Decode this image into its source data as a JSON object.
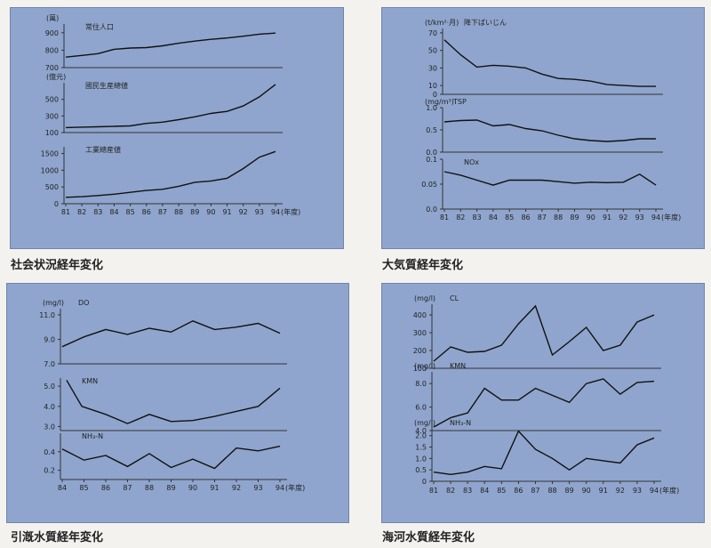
{
  "captions": {
    "social": "社会状況経年変化",
    "air": "大気質経年変化",
    "river": "引漑水質経年変化",
    "sea": "海河水質経年変化"
  },
  "chart_data": [
    {
      "id": "social",
      "type": "line",
      "x": [
        81,
        82,
        83,
        84,
        85,
        86,
        87,
        88,
        89,
        90,
        91,
        92,
        93,
        94
      ],
      "x_tick_labels": [
        "81",
        "82",
        "83",
        "84",
        "85",
        "86",
        "87",
        "88",
        "89",
        "90",
        "91",
        "92",
        "93",
        "94"
      ],
      "x_end_label": "(年度)",
      "subplots": [
        {
          "name": "常住人口",
          "unit": "(萬)",
          "ylim": [
            700,
            950
          ],
          "yticks": [
            700,
            800,
            900
          ],
          "values": [
            760,
            770,
            780,
            805,
            812,
            815,
            825,
            840,
            852,
            862,
            870,
            880,
            892,
            898
          ]
        },
        {
          "name": "國民生産總値",
          "unit": "(億元)",
          "ylim": [
            100,
            700
          ],
          "yticks": [
            100,
            300,
            500
          ],
          "values": [
            160,
            165,
            170,
            175,
            180,
            210,
            225,
            255,
            290,
            330,
            355,
            420,
            530,
            680
          ]
        },
        {
          "name": "工業總産値",
          "unit": "",
          "ylim": [
            0,
            1700
          ],
          "yticks": [
            0,
            500,
            1000,
            1500
          ],
          "values": [
            190,
            210,
            245,
            285,
            340,
            395,
            430,
            520,
            640,
            680,
            760,
            1050,
            1390,
            1560
          ]
        }
      ]
    },
    {
      "id": "air",
      "type": "line",
      "x": [
        81,
        82,
        83,
        84,
        85,
        86,
        87,
        88,
        89,
        90,
        91,
        92,
        93,
        94
      ],
      "x_tick_labels": [
        "81",
        "82",
        "83",
        "84",
        "85",
        "86",
        "87",
        "88",
        "89",
        "90",
        "91",
        "92",
        "93",
        "94"
      ],
      "x_end_label": "(年度)",
      "subplots": [
        {
          "name": "降下ばいじん",
          "unit": "(t/km²·月)",
          "ylim": [
            0,
            75
          ],
          "yticks": [
            0,
            10,
            30,
            50,
            70
          ],
          "values": [
            62,
            45,
            31,
            33,
            32,
            30,
            23,
            18,
            17,
            15,
            11,
            10,
            9,
            9
          ]
        },
        {
          "name": "TSP",
          "unit": "(mg/m³)",
          "ylim": [
            0,
            1.0
          ],
          "yticks": [
            0.0,
            0.5,
            1.0
          ],
          "y_tick_labels": [
            "0.0",
            "0.5",
            "1.0"
          ],
          "values": [
            0.68,
            0.71,
            0.72,
            0.59,
            0.62,
            0.53,
            0.48,
            0.38,
            0.3,
            0.26,
            0.24,
            0.26,
            0.3,
            0.3
          ]
        },
        {
          "name": "NOx",
          "unit": "",
          "ylim": [
            0,
            0.1
          ],
          "yticks": [
            0.0,
            0.05,
            0.1
          ],
          "y_tick_labels": [
            "0.0",
            "0.05",
            "0.1"
          ],
          "values": [
            0.075,
            0.068,
            0.058,
            0.048,
            0.058,
            0.058,
            0.058,
            0.055,
            0.052,
            0.054,
            0.053,
            0.054,
            0.07,
            0.048
          ]
        }
      ]
    },
    {
      "id": "river",
      "type": "line",
      "x": [
        84,
        85,
        86,
        87,
        88,
        89,
        90,
        91,
        92,
        93,
        94
      ],
      "x_tick_labels": [
        "84",
        "85",
        "86",
        "87",
        "88",
        "89",
        "90",
        "91",
        "92",
        "93",
        "94"
      ],
      "x_end_label": "(年度)",
      "subplots": [
        {
          "name": "DO",
          "unit": "(mg/l)",
          "ylim": [
            7.0,
            11.5
          ],
          "yticks": [
            7.0,
            9.0,
            11.0
          ],
          "y_tick_labels": [
            "7.0",
            "9.0",
            "11.0"
          ],
          "values": [
            8.4,
            9.2,
            9.8,
            9.4,
            9.9,
            9.6,
            10.5,
            9.8,
            10.0,
            10.3,
            9.5
          ]
        },
        {
          "name": "KMN",
          "unit": "",
          "ylim": [
            2.8,
            5.4
          ],
          "yticks": [
            3.0,
            4.0,
            5.0
          ],
          "y_tick_labels": [
            "3.0",
            "4.0",
            "5.0"
          ],
          "x_points": [
            84.2,
            84.9,
            86,
            87,
            88,
            89,
            90,
            91,
            92,
            93,
            94
          ],
          "values": [
            5.3,
            4.0,
            3.6,
            3.15,
            3.6,
            3.25,
            3.3,
            3.5,
            3.75,
            4.0,
            4.9
          ]
        },
        {
          "name": "NH₃-N",
          "unit": "",
          "ylim": [
            0.1,
            0.6
          ],
          "yticks": [
            0.2,
            0.4
          ],
          "y_tick_labels": [
            "0.2",
            "0.4"
          ],
          "values": [
            0.43,
            0.31,
            0.36,
            0.24,
            0.38,
            0.23,
            0.32,
            0.22,
            0.44,
            0.41,
            0.46
          ]
        }
      ]
    },
    {
      "id": "sea",
      "type": "line",
      "x": [
        81,
        82,
        83,
        84,
        85,
        86,
        87,
        88,
        89,
        90,
        91,
        92,
        93,
        94
      ],
      "x_tick_labels": [
        "81",
        "82",
        "83",
        "84",
        "85",
        "86",
        "87",
        "88",
        "89",
        "90",
        "91",
        "92",
        "93",
        "94"
      ],
      "x_end_label": "(年度)",
      "subplots": [
        {
          "name": "CL",
          "unit": "(mg/l)",
          "ylim": [
            100,
            460
          ],
          "yticks": [
            100,
            200,
            300,
            400
          ],
          "values": [
            140,
            220,
            190,
            195,
            230,
            350,
            450,
            175,
            250,
            330,
            200,
            230,
            360,
            400
          ]
        },
        {
          "name": "KMN",
          "unit": "(mg/l)",
          "ylim": [
            4.0,
            9.0
          ],
          "yticks": [
            4.0,
            6.0,
            8.0
          ],
          "y_tick_labels": [
            "4.0",
            "6.0",
            "8.0"
          ],
          "values": [
            4.3,
            5.1,
            5.5,
            7.6,
            6.6,
            6.6,
            7.6,
            7.0,
            6.4,
            8.0,
            8.4,
            7.1,
            8.1,
            8.2
          ]
        },
        {
          "name": "NH₃-N",
          "unit": "(mg/l)",
          "ylim": [
            0,
            2.3
          ],
          "yticks": [
            0,
            0.5,
            1.0,
            1.5,
            2.0
          ],
          "y_tick_labels": [
            "0",
            "0.5",
            "1.0",
            "1.5",
            "2.0"
          ],
          "values": [
            0.4,
            0.3,
            0.4,
            0.65,
            0.55,
            2.2,
            1.4,
            1.0,
            0.5,
            1.0,
            0.9,
            0.8,
            1.6,
            1.9
          ]
        }
      ]
    }
  ]
}
